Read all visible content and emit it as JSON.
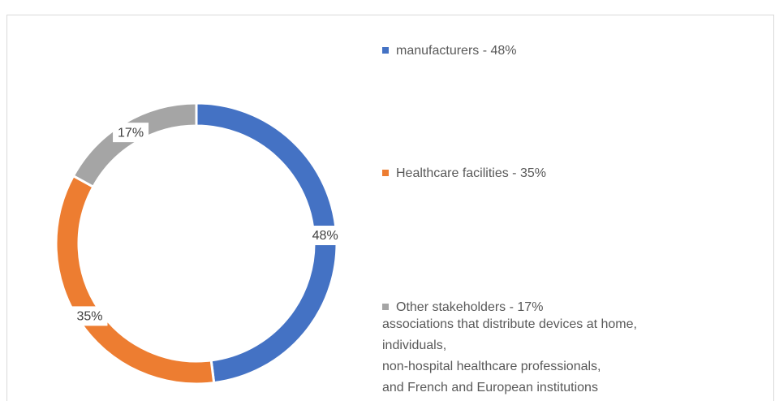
{
  "chart_data": {
    "type": "donut",
    "categories": [
      "manufacturers - 48%",
      "Healthcare facilities - 35%",
      "Other stakeholders - 17%"
    ],
    "values": [
      48,
      35,
      17
    ],
    "value_labels": [
      "48%",
      "35%",
      "17%"
    ],
    "colors": [
      "#4472c4",
      "#ed7d31",
      "#a5a5a5"
    ],
    "legend_note": [
      "associations that distribute devices at home,",
      "individuals,",
      "non-hospital healthcare professionals,",
      "and French and European institutions"
    ]
  }
}
